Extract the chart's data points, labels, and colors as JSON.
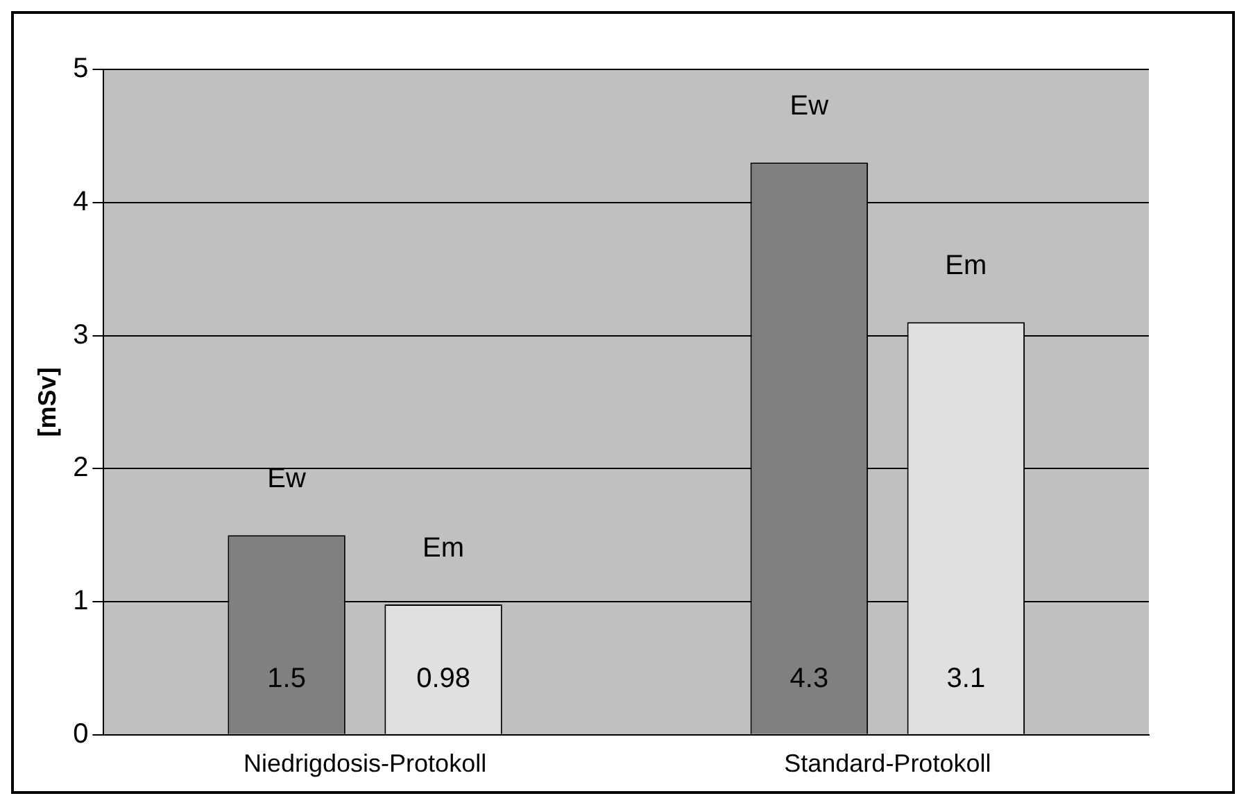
{
  "chart_data": {
    "type": "bar",
    "ylabel": "[mSv]",
    "categories": [
      "Niedrigdosis-Protokoll",
      "Standard-Protokoll"
    ],
    "series": [
      {
        "name": "Ew",
        "color": "#808080",
        "values": [
          1.5,
          4.3
        ]
      },
      {
        "name": "Em",
        "color": "#e0e0e0",
        "values": [
          0.98,
          3.1
        ]
      }
    ],
    "ylim": [
      0,
      5
    ],
    "yticks": [
      0,
      1,
      2,
      3,
      4,
      5
    ],
    "grid": "y",
    "data_labels": true,
    "legend": false
  }
}
